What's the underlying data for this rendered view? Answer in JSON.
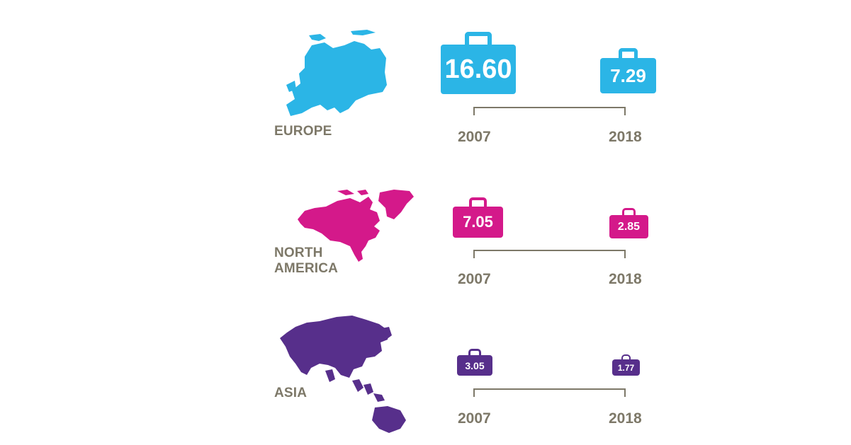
{
  "colors": {
    "europe": "#2bb5e6",
    "north_america": "#d4198a",
    "asia": "#572f8b",
    "text": "#7d7868",
    "bracket": "#7d7868"
  },
  "regions": [
    {
      "label": "EUROPE",
      "map_icon": "europe-map-icon"
    },
    {
      "label": "NORTH\nAMERICA",
      "map_icon": "north-america-map-icon"
    },
    {
      "label": "ASIA",
      "map_icon": "asia-map-icon"
    }
  ],
  "chart_data": {
    "type": "other",
    "encoding": "suitcase icon size scales with value",
    "categories": [
      "2007",
      "2018"
    ],
    "series": [
      {
        "name": "EUROPE",
        "values": [
          16.6,
          7.29
        ],
        "labels": [
          "16.60",
          "7.29"
        ],
        "color": "#2bb5e6"
      },
      {
        "name": "NORTH AMERICA",
        "values": [
          7.05,
          2.85
        ],
        "labels": [
          "7.05",
          "2.85"
        ],
        "color": "#d4198a"
      },
      {
        "name": "ASIA",
        "values": [
          3.05,
          1.77
        ],
        "labels": [
          "3.05",
          "1.77"
        ],
        "color": "#572f8b"
      }
    ]
  }
}
